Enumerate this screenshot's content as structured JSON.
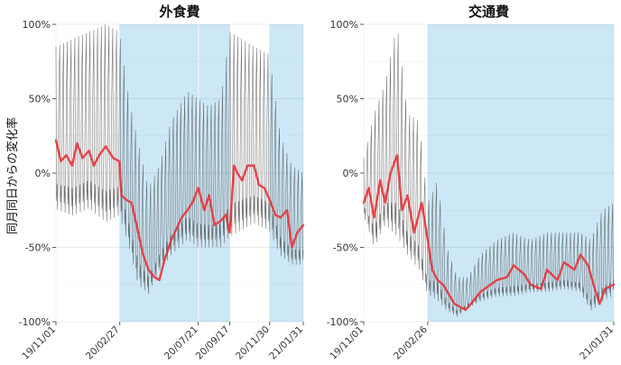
{
  "y_axis_label": "同月同日からの変化率",
  "chart_data": [
    {
      "type": "line",
      "title": "外食費",
      "xlabel": "",
      "ylabel": "同月同日からの変化率",
      "x_range": [
        "2019-11-01",
        "2021-01-31"
      ],
      "ylim": [
        -100,
        100
      ],
      "y_ticks": [
        -100,
        -50,
        0,
        50,
        100
      ],
      "y_tick_labels": [
        "-100%",
        "-50%",
        "0%",
        "50%",
        "100%"
      ],
      "x_ticks": [
        "2019-11-01",
        "2020-02-27",
        "2020-07-21",
        "2020-09-17",
        "2020-11-30",
        "2021-01-31"
      ],
      "x_tick_labels": [
        "19/11/01",
        "20/02/27",
        "20/07/21",
        "20/09/17",
        "20/11/30",
        "21/01/31"
      ],
      "grid": true,
      "legend": "none",
      "shaded_periods": [
        {
          "start": "2020-02-27",
          "end": "2020-07-20"
        },
        {
          "start": "2020-07-22",
          "end": "2020-09-17"
        },
        {
          "start": "2020-11-30",
          "end": "2021-01-31"
        }
      ],
      "series": [
        {
          "role": "daily",
          "color": "#555555",
          "x": [
            "2019-11-01",
            "2019-12-01",
            "2020-01-01",
            "2020-02-01",
            "2020-02-26",
            "2020-03-15",
            "2020-04-01",
            "2020-04-20",
            "2020-05-10",
            "2020-06-01",
            "2020-07-01",
            "2020-07-20",
            "2020-08-10",
            "2020-09-01",
            "2020-09-17",
            "2020-10-10",
            "2020-11-01",
            "2020-11-29",
            "2020-12-20",
            "2021-01-10",
            "2021-01-31"
          ],
          "high": [
            85,
            90,
            95,
            100,
            95,
            50,
            20,
            -10,
            5,
            35,
            55,
            50,
            45,
            50,
            95,
            90,
            85,
            80,
            25,
            5,
            0
          ],
          "low": [
            -30,
            -35,
            -30,
            -40,
            -35,
            -55,
            -80,
            -85,
            -70,
            -60,
            -50,
            -55,
            -55,
            -55,
            -50,
            -45,
            -40,
            -45,
            -60,
            -65,
            -65
          ]
        },
        {
          "role": "moving-average",
          "color": "#e8333a",
          "x": [
            "2019-11-01",
            "2019-11-10",
            "2019-11-20",
            "2019-12-01",
            "2019-12-10",
            "2019-12-20",
            "2020-01-01",
            "2020-01-10",
            "2020-01-20",
            "2020-02-01",
            "2020-02-15",
            "2020-02-26",
            "2020-03-01",
            "2020-03-10",
            "2020-03-20",
            "2020-04-01",
            "2020-04-10",
            "2020-04-20",
            "2020-05-01",
            "2020-05-10",
            "2020-05-20",
            "2020-06-01",
            "2020-06-10",
            "2020-06-20",
            "2020-07-01",
            "2020-07-10",
            "2020-07-21",
            "2020-08-01",
            "2020-08-10",
            "2020-08-20",
            "2020-09-01",
            "2020-09-10",
            "2020-09-17",
            "2020-09-25",
            "2020-10-01",
            "2020-10-10",
            "2020-10-20",
            "2020-11-01",
            "2020-11-10",
            "2020-11-20",
            "2020-11-30",
            "2020-12-10",
            "2020-12-20",
            "2021-01-01",
            "2021-01-10",
            "2021-01-20",
            "2021-01-31"
          ],
          "values": [
            22,
            8,
            12,
            5,
            20,
            10,
            15,
            5,
            12,
            18,
            10,
            8,
            -15,
            -18,
            -20,
            -40,
            -55,
            -65,
            -70,
            -72,
            -58,
            -45,
            -38,
            -30,
            -25,
            -20,
            -10,
            -25,
            -15,
            -35,
            -32,
            -28,
            -40,
            5,
            0,
            -5,
            5,
            5,
            -8,
            -10,
            -18,
            -28,
            -30,
            -25,
            -50,
            -40,
            -35
          ]
        }
      ]
    },
    {
      "type": "line",
      "title": "交通費",
      "xlabel": "",
      "ylabel": "",
      "x_range": [
        "2019-11-01",
        "2021-01-31"
      ],
      "ylim": [
        -100,
        100
      ],
      "y_ticks": [
        -100,
        -50,
        0,
        50,
        100
      ],
      "y_tick_labels": [
        "-100%",
        "-50%",
        "0%",
        "50%",
        "100%"
      ],
      "x_ticks": [
        "2019-11-01",
        "2020-02-26",
        "2021-01-31"
      ],
      "x_tick_labels": [
        "19/11/01",
        "20/02/26",
        "21/01/31"
      ],
      "grid": true,
      "legend": "none",
      "shaded_periods": [
        {
          "start": "2020-02-26",
          "end": "2021-01-31"
        }
      ],
      "series": [
        {
          "role": "daily",
          "color": "#555555",
          "x": [
            "2019-11-01",
            "2019-11-20",
            "2019-12-10",
            "2020-01-01",
            "2020-01-20",
            "2020-02-10",
            "2020-02-26",
            "2020-03-15",
            "2020-04-01",
            "2020-04-20",
            "2020-05-10",
            "2020-06-01",
            "2020-07-01",
            "2020-08-01",
            "2020-09-01",
            "2020-10-01",
            "2020-11-01",
            "2020-12-01",
            "2020-12-20",
            "2021-01-10",
            "2021-01-31"
          ],
          "high": [
            10,
            40,
            60,
            100,
            40,
            35,
            -20,
            -5,
            -50,
            -70,
            -70,
            -55,
            -45,
            -40,
            -45,
            -40,
            -40,
            -40,
            -45,
            -25,
            -20
          ],
          "low": [
            -30,
            -55,
            -40,
            -50,
            -60,
            -70,
            -85,
            -90,
            -95,
            -98,
            -92,
            -88,
            -85,
            -85,
            -82,
            -82,
            -80,
            -82,
            -95,
            -90,
            -85
          ]
        },
        {
          "role": "moving-average",
          "color": "#e8333a",
          "x": [
            "2019-11-01",
            "2019-11-10",
            "2019-11-20",
            "2019-12-01",
            "2019-12-10",
            "2019-12-20",
            "2020-01-01",
            "2020-01-10",
            "2020-01-20",
            "2020-02-01",
            "2020-02-15",
            "2020-02-26",
            "2020-03-05",
            "2020-03-15",
            "2020-03-25",
            "2020-04-05",
            "2020-04-15",
            "2020-04-25",
            "2020-05-05",
            "2020-05-15",
            "2020-06-01",
            "2020-06-20",
            "2020-07-01",
            "2020-07-20",
            "2020-08-01",
            "2020-08-20",
            "2020-09-01",
            "2020-09-20",
            "2020-10-01",
            "2020-10-20",
            "2020-11-01",
            "2020-11-20",
            "2020-12-01",
            "2020-12-15",
            "2020-12-25",
            "2021-01-05",
            "2021-01-15",
            "2021-01-31"
          ],
          "values": [
            -20,
            -10,
            -30,
            -5,
            -20,
            0,
            12,
            -25,
            -15,
            -40,
            -20,
            -45,
            -65,
            -72,
            -75,
            -82,
            -88,
            -90,
            -92,
            -88,
            -80,
            -75,
            -72,
            -70,
            -62,
            -68,
            -75,
            -78,
            -65,
            -72,
            -60,
            -65,
            -55,
            -62,
            -75,
            -88,
            -78,
            -75
          ]
        }
      ]
    }
  ]
}
